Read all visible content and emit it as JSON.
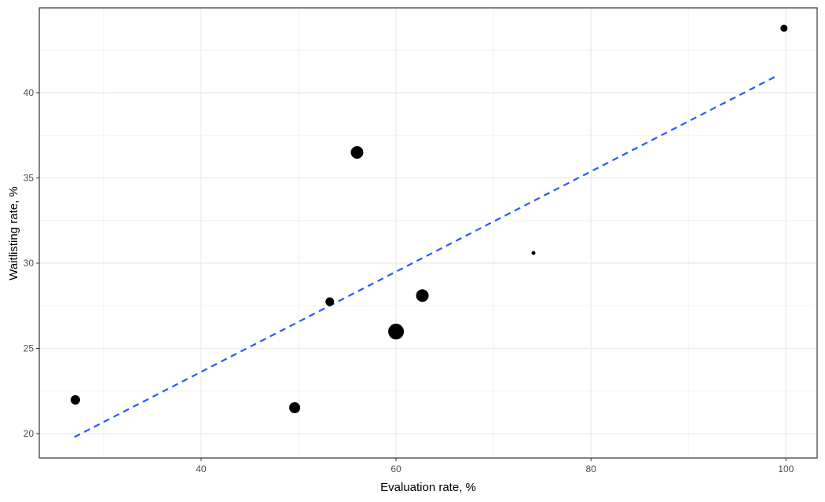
{
  "chart_data": {
    "type": "scatter",
    "xlabel": "Evaluation rate, %",
    "ylabel": "Waitlisting rate, %",
    "x": [
      27.1,
      49.6,
      53.2,
      56.0,
      60.0,
      62.7,
      74.1,
      99.8
    ],
    "series": [
      {
        "color": "#000000",
        "values": [
          21.98,
          21.52,
          27.74,
          36.5,
          25.99,
          28.1,
          30.6,
          43.78
        ],
        "sizes": [
          6,
          7,
          5.5,
          8,
          10,
          8,
          2.5,
          4.5
        ]
      }
    ],
    "trend": {
      "x": [
        27.0,
        99.0
      ],
      "y": [
        19.8,
        40.97
      ],
      "color": "#1f5cff"
    },
    "xlim": [
      23.4,
      103.2
    ],
    "ylim": [
      18.57,
      44.98
    ],
    "xticks": [
      40,
      60,
      80,
      100
    ],
    "yticks": [
      20,
      25,
      30,
      35,
      40
    ],
    "xminor": [
      30,
      50,
      70,
      90
    ],
    "yminor": [
      22.5,
      27.5,
      32.5,
      37.5,
      42.5
    ],
    "grid": true
  }
}
